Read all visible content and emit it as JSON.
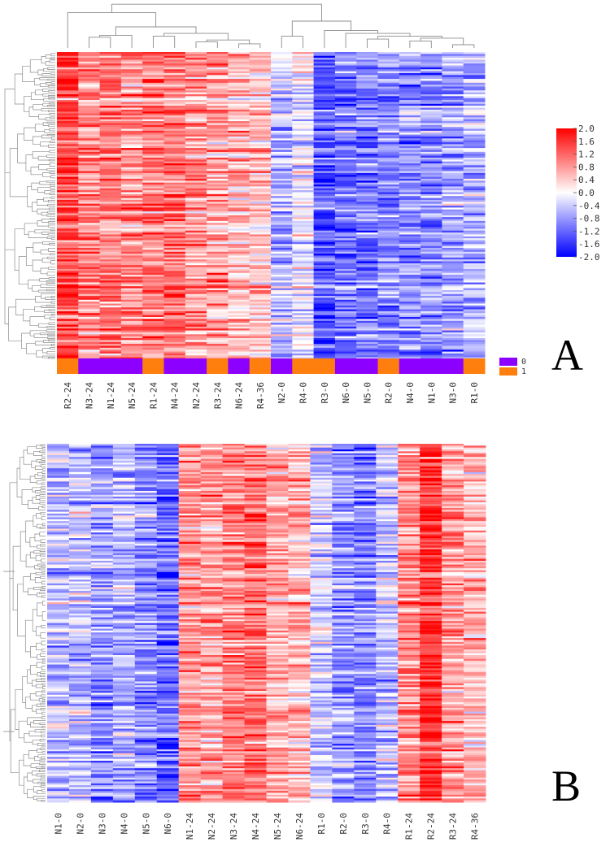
{
  "chart_data": [
    {
      "panel": "A",
      "type": "heatmap",
      "clustered": true,
      "columns": [
        "R2-24",
        "N3-24",
        "N1-24",
        "N5-24",
        "R1-24",
        "N4-24",
        "N2-24",
        "R3-24",
        "N6-24",
        "R4-36",
        "N2-0",
        "R4-0",
        "R3-0",
        "N6-0",
        "N5-0",
        "R2-0",
        "N4-0",
        "N1-0",
        "N3-0",
        "R1-0"
      ],
      "group_colors": [
        "#ff7f0e",
        "#8b00ff",
        "#8b00ff",
        "#8b00ff",
        "#ff7f0e",
        "#8b00ff",
        "#8b00ff",
        "#ff7f0e",
        "#8b00ff",
        "#ff7f0e",
        "#8b00ff",
        "#ff7f0e",
        "#ff7f0e",
        "#8b00ff",
        "#8b00ff",
        "#ff7f0e",
        "#8b00ff",
        "#8b00ff",
        "#8b00ff",
        "#ff7f0e"
      ],
      "column_means": [
        1.5,
        1.0,
        1.1,
        0.9,
        1.1,
        1.2,
        0.8,
        0.8,
        0.6,
        0.5,
        -0.5,
        -0.1,
        -1.3,
        -1.1,
        -1.0,
        -0.9,
        -0.8,
        -0.8,
        -0.7,
        -0.6
      ],
      "legend": {
        "items": [
          {
            "label": "0",
            "color": "#8b00ff"
          },
          {
            "label": "1",
            "color": "#ff7f0e"
          }
        ]
      },
      "colorbar": {
        "ticks": [
          "2.0",
          "1.6",
          "1.2",
          "0.8",
          "0.4",
          "0.0",
          "-0.4",
          "-0.8",
          "-1.2",
          "-1.6",
          "-2.0"
        ],
        "range": [
          -2.0,
          2.0
        ],
        "colors": [
          "#0000ff",
          "#ffffff",
          "#ff0000"
        ]
      }
    },
    {
      "panel": "B",
      "type": "heatmap",
      "clustered": false,
      "columns": [
        "N1-0",
        "N2-0",
        "N3-0",
        "N4-0",
        "N5-0",
        "N6-0",
        "N1-24",
        "N2-24",
        "N3-24",
        "N4-24",
        "N5-24",
        "N6-24",
        "R1-0",
        "R2-0",
        "R3-0",
        "R4-0",
        "R1-24",
        "R2-24",
        "R3-24",
        "R4-36"
      ],
      "column_means": [
        -0.6,
        -0.5,
        -0.8,
        -0.6,
        -1.0,
        -1.2,
        0.8,
        0.7,
        0.9,
        1.1,
        0.6,
        0.5,
        -0.4,
        -0.8,
        -1.0,
        -0.5,
        0.9,
        1.6,
        0.8,
        0.5
      ]
    }
  ],
  "labels": {
    "panel_a": "A",
    "panel_b": "B"
  }
}
